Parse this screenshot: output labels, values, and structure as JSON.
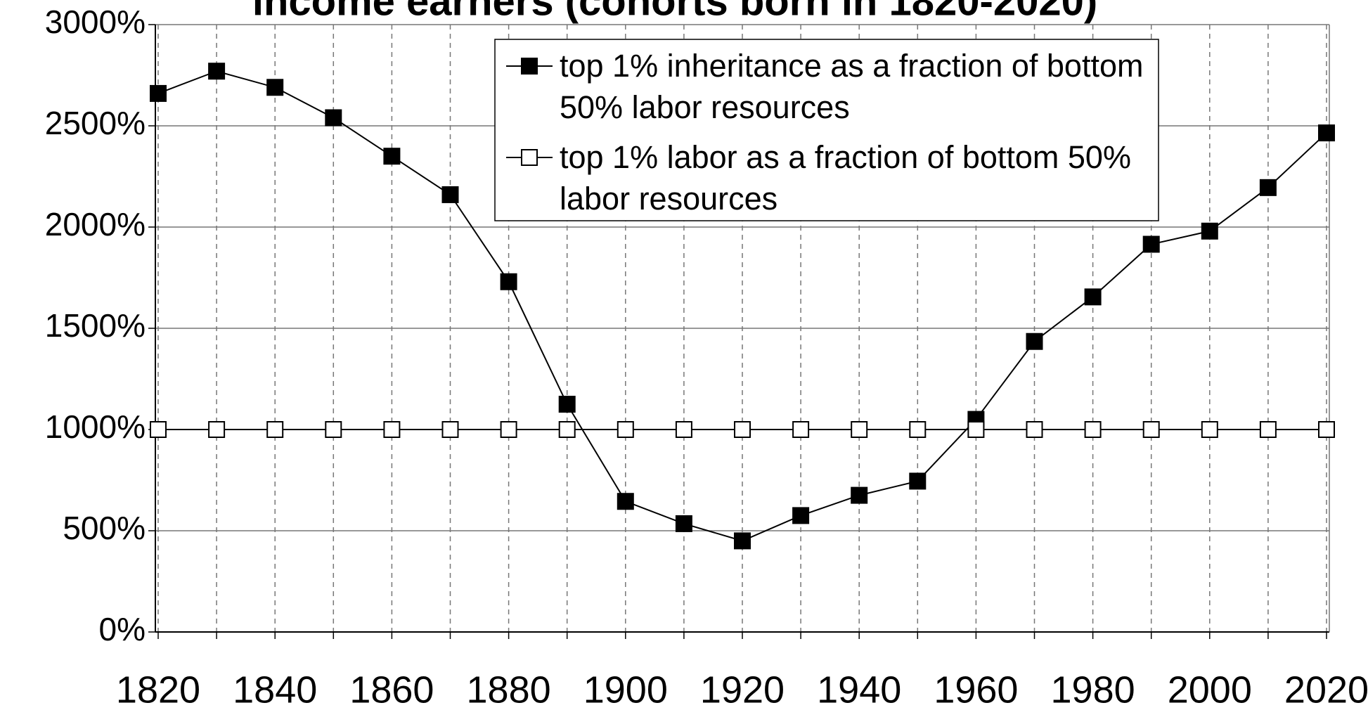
{
  "chart_data": {
    "type": "line",
    "title": "income earners (cohorts born in 1820-2020)",
    "x": [
      1820,
      1830,
      1840,
      1850,
      1860,
      1870,
      1880,
      1890,
      1900,
      1910,
      1920,
      1930,
      1940,
      1950,
      1960,
      1970,
      1980,
      1990,
      2000,
      2010,
      2020
    ],
    "series": [
      {
        "name": "top 1% inheritance as a fraction of bottom 50%  labor resources",
        "color": "#000000",
        "marker": "filled-square",
        "values": [
          2660,
          2770,
          2690,
          2540,
          2350,
          2160,
          1730,
          1125,
          645,
          535,
          450,
          575,
          675,
          745,
          1050,
          1435,
          1655,
          1915,
          1980,
          2195,
          2465
        ]
      },
      {
        "name": "top 1% labor as a fraction of bottom 50% labor resources",
        "color": "#000000",
        "marker": "open-square",
        "values": [
          1000,
          1000,
          1000,
          1000,
          1000,
          1000,
          1000,
          1000,
          1000,
          1000,
          1000,
          1000,
          1000,
          1000,
          1000,
          1000,
          1000,
          1000,
          1000,
          1000,
          1000
        ]
      }
    ],
    "xlim": [
      1820,
      2020
    ],
    "xticks": [
      1820,
      1840,
      1860,
      1880,
      1900,
      1920,
      1940,
      1960,
      1980,
      2000,
      2020
    ],
    "ylim": [
      0,
      3000
    ],
    "yticks": [
      {
        "value": 0,
        "label": "0%"
      },
      {
        "value": 500,
        "label": "500%"
      },
      {
        "value": 1000,
        "label": "1000%"
      },
      {
        "value": 1500,
        "label": "1500%"
      },
      {
        "value": 2000,
        "label": "2000%"
      },
      {
        "value": 2500,
        "label": "2500%"
      },
      {
        "value": 3000,
        "label": "3000%"
      }
    ],
    "grid": true,
    "legend": "top"
  }
}
